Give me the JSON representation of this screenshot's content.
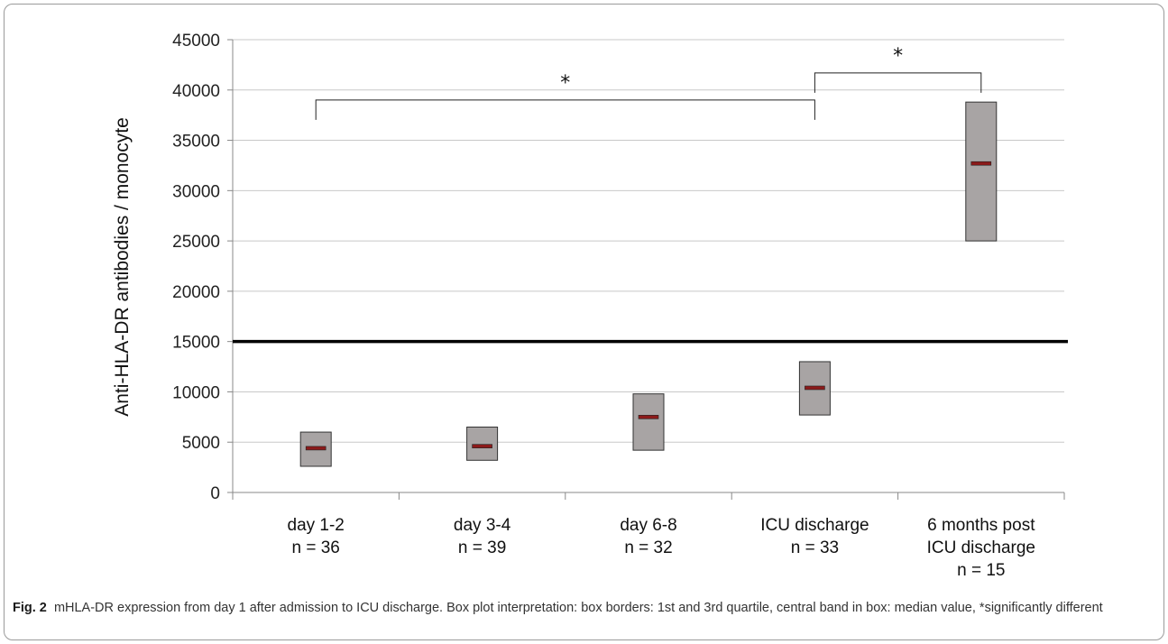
{
  "chart_data": {
    "type": "box",
    "ylabel": "Anti-HLA-DR antibodies / monocyte",
    "ylim": [
      0,
      45000
    ],
    "yticks": [
      "0",
      "5000",
      "10000",
      "15000",
      "20000",
      "25000",
      "30000",
      "35000",
      "40000",
      "45000"
    ],
    "grid": true,
    "threshold": 15000,
    "categories": [
      {
        "lines": [
          "day 1-2",
          "n = 36"
        ],
        "q1": 2600,
        "median": 4400,
        "q3": 6000
      },
      {
        "lines": [
          "day 3-4",
          "n = 39"
        ],
        "q1": 3200,
        "median": 4600,
        "q3": 6500
      },
      {
        "lines": [
          "day 6-8",
          "n = 32"
        ],
        "q1": 4200,
        "median": 7500,
        "q3": 9800
      },
      {
        "lines": [
          "ICU discharge",
          "n = 33"
        ],
        "q1": 7700,
        "median": 10400,
        "q3": 13000
      },
      {
        "lines": [
          "6 months post",
          "ICU discharge",
          "n = 15"
        ],
        "q1": 25000,
        "median": 32700,
        "q3": 38800
      }
    ],
    "significance": [
      {
        "from": 0,
        "to": 3,
        "y": 39000,
        "label": "*"
      },
      {
        "from": 3,
        "to": 4,
        "y": 41700,
        "label": "*"
      }
    ],
    "colors": {
      "box_fill": "#a8a4a4",
      "median": "#8b1a1a",
      "grid": "#c8c8c8"
    }
  },
  "caption": {
    "label": "Fig. 2",
    "text": "mHLA-DR expression from day 1 after admission to ICU discharge. Box plot interpretation: box borders: 1st and 3rd quartile, central band in box: median value, *significantly different"
  }
}
